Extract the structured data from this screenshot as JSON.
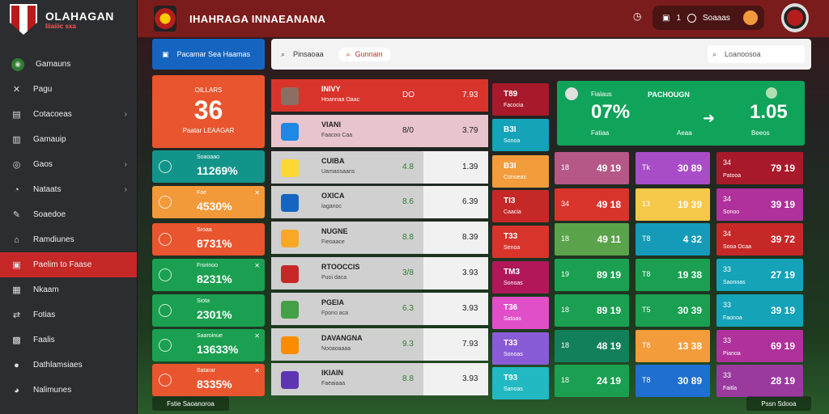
{
  "brand": {
    "title": "OLAHAGAN",
    "subtitle": "Iiiaiiic sxa"
  },
  "sidebar": {
    "items": [
      {
        "label": "Gamauns",
        "icon": "ball-icon",
        "glyph": "◉",
        "chevron": false,
        "active": false
      },
      {
        "label": "Pagu",
        "icon": "tools-icon",
        "glyph": "✕",
        "chevron": false,
        "active": false
      },
      {
        "label": "Cotacoeas",
        "icon": "card-icon",
        "glyph": "▤",
        "chevron": true,
        "active": false
      },
      {
        "label": "Gamauip",
        "icon": "list-icon",
        "glyph": "▥",
        "chevron": false,
        "active": false
      },
      {
        "label": "Gaos",
        "icon": "target-icon",
        "glyph": "◎",
        "chevron": true,
        "active": false
      },
      {
        "label": "Nataats",
        "icon": "settings-icon",
        "glyph": "◔",
        "chevron": true,
        "active": false
      },
      {
        "label": "Soaedoe",
        "icon": "user-edit-icon",
        "glyph": "✎",
        "chevron": false,
        "active": false
      },
      {
        "label": "Ramdiunes",
        "icon": "building-icon",
        "glyph": "⌂",
        "chevron": false,
        "active": false
      },
      {
        "label": "Paelim to Faase",
        "icon": "flag-icon",
        "glyph": "▣",
        "chevron": false,
        "active": true
      },
      {
        "label": "Nkaam",
        "icon": "grid-icon",
        "glyph": "▦",
        "chevron": false,
        "active": false
      },
      {
        "label": "Fotias",
        "icon": "share-icon",
        "glyph": "⇄",
        "chevron": false,
        "active": false
      },
      {
        "label": "Faalis",
        "icon": "calendar-icon",
        "glyph": "▩",
        "chevron": false,
        "active": false
      },
      {
        "label": "Dathlamsiaes",
        "icon": "person-icon",
        "glyph": "●",
        "chevron": false,
        "active": false
      },
      {
        "label": "Nalimunes",
        "icon": "star-icon",
        "glyph": "◕",
        "chevron": false,
        "active": false
      }
    ]
  },
  "topbar": {
    "title": "IHAHRAGA INNAEANANA",
    "pill_num": "1",
    "pill_label": "Soaaas",
    "clock": "◷"
  },
  "blue_button": {
    "label": "Pacamar Sea Haamas"
  },
  "search": {
    "label": "Pinsaoaa",
    "chip": "Gunnain",
    "right": "Loanoosoa"
  },
  "big_score": {
    "label": "OILLARS",
    "value": "36",
    "sub": "Paatar LEAAGAR"
  },
  "stats": [
    {
      "title": "Soaoaao",
      "value": "11269%",
      "color": "#13948a",
      "icon": "clock-icon",
      "x": ""
    },
    {
      "title": "Foe",
      "value": "4530%",
      "color": "#f2993a",
      "icon": "shield-icon",
      "x": "✕"
    },
    {
      "title": "Sroaa",
      "value": "8731%",
      "color": "#e8552e",
      "icon": "clock-icon",
      "x": ""
    },
    {
      "title": "Frorinoo",
      "value": "8231%",
      "color": "#1aa050",
      "icon": "clock-icon",
      "x": "✕"
    },
    {
      "title": "Siota",
      "value": "2301%",
      "color": "#1aa050",
      "icon": "clock-icon",
      "x": ""
    },
    {
      "title": "Saaroinue",
      "value": "13633%",
      "color": "#1aa050",
      "icon": "clock-icon",
      "x": "✕"
    },
    {
      "title": "Satarar",
      "value": "8335%",
      "color": "#e8552e",
      "icon": "clock-icon",
      "x": "✕"
    }
  ],
  "table": [
    {
      "name": "INIVY",
      "sub": "Hoannaa Oaac",
      "o1": "DO",
      "o2": "7.93",
      "bg": "#d9342b",
      "o1c": "#222",
      "flag": "#8d6e63"
    },
    {
      "name": "VIANI",
      "sub": "Faacoo Caa",
      "o1": "8/0",
      "o2": "3.79",
      "bg": "#e8c5cc",
      "o1c": "#222",
      "flag": "#1e88e5"
    },
    {
      "name": "CUIBA",
      "sub": "Uamaosaans",
      "o1": "4.8",
      "o2": "1.39",
      "bg": "#d0d0d0",
      "o1c": "#2e7d32",
      "flag": "#fdd835"
    },
    {
      "name": "OXICA",
      "sub": "Iaganoc",
      "o1": "8.6",
      "o2": "6.39",
      "bg": "#d0d0d0",
      "o1c": "#2e7d32",
      "flag": "#1565c0"
    },
    {
      "name": "NUGNE",
      "sub": "Fieoaace",
      "o1": "8.8",
      "o2": "8.39",
      "bg": "#d0d0d0",
      "o1c": "#2e7d32",
      "flag": "#f9a825"
    },
    {
      "name": "RTOOCCIS",
      "sub": "Puoi daca",
      "o1": "3/8",
      "o2": "3.93",
      "bg": "#d0d0d0",
      "o1c": "#2e7d32",
      "flag": "#c62828"
    },
    {
      "name": "PGEIA",
      "sub": "Fpono aca",
      "o1": "6.3",
      "o2": "3.93",
      "bg": "#d0d0d0",
      "o1c": "#2e7d32",
      "flag": "#43a047"
    },
    {
      "name": "DAVANGNA",
      "sub": "Nooaoaaaa",
      "o1": "9.3",
      "o2": "7.93",
      "bg": "#d0d0d0",
      "o1c": "#2e7d32",
      "flag": "#fb8c00"
    },
    {
      "name": "IKIAIN",
      "sub": "Faeaiaaa",
      "o1": "8.8",
      "o2": "3.93",
      "bg": "#d0d0d0",
      "o1c": "#2e7d32",
      "flag": "#5e35b1"
    }
  ],
  "tiles": [
    {
      "a": "T89",
      "b": "Facocia",
      "color": "#a8192b"
    },
    {
      "a": "B3I",
      "b": "Sonoa",
      "color": "#14a3b8"
    },
    {
      "a": "B3I",
      "b": "Conoeas",
      "color": "#f39c3c"
    },
    {
      "a": "TI3",
      "b": "Caacia",
      "color": "#c62828"
    },
    {
      "a": "T33",
      "b": "Senoa",
      "color": "#d9342b"
    },
    {
      "a": "TM3",
      "b": "Sonoas",
      "color": "#b0185a"
    },
    {
      "a": "T36",
      "b": "Satoas",
      "color": "#e04fc8"
    },
    {
      "a": "T33",
      "b": "Sonoas",
      "color": "#8a5bd6"
    },
    {
      "a": "T93",
      "b": "Sanoas",
      "color": "#23b9c2"
    }
  ],
  "feature": {
    "left_label": "Fialaus",
    "left_value": "07%",
    "left_caption": "Fatiaa",
    "middle": "PACHOUGN",
    "right_value": "1.05",
    "mid_caption": "Aeaa",
    "right_caption": "Beeos"
  },
  "grid": [
    [
      {
        "a": "18",
        "b": "49 19",
        "c": "",
        "color": "#b55887"
      },
      {
        "a": "Tk",
        "b": "30 89",
        "c": "",
        "color": "#a84cc8"
      },
      {
        "a": "34",
        "b": "79 19",
        "c": "Patooa",
        "color": "#a8192b"
      }
    ],
    [
      {
        "a": "34",
        "b": "49 18",
        "c": "",
        "color": "#d9342b"
      },
      {
        "a": "13",
        "b": "19 39",
        "c": "",
        "color": "#f5c84a"
      },
      {
        "a": "34",
        "b": "39 19",
        "c": "Sonoo",
        "color": "#b0309c"
      }
    ],
    [
      {
        "a": "18",
        "b": "49 11",
        "c": "",
        "color": "#5aa34a"
      },
      {
        "a": "T8",
        "b": "4 32",
        "c": "",
        "color": "#159bb8"
      },
      {
        "a": "34",
        "b": "39 72",
        "c": "Sooa Ocaa",
        "color": "#c62828"
      }
    ],
    [
      {
        "a": "19",
        "b": "89 19",
        "c": "",
        "color": "#1aa050"
      },
      {
        "a": "T8",
        "b": "19 38",
        "c": "",
        "color": "#1aa050"
      },
      {
        "a": "33",
        "b": "27 19",
        "c": "Saonoas",
        "color": "#14a3b8"
      }
    ],
    [
      {
        "a": "18",
        "b": "89 19",
        "c": "",
        "color": "#1aa050"
      },
      {
        "a": "T5",
        "b": "30 39",
        "c": "",
        "color": "#1aa050"
      },
      {
        "a": "33",
        "b": "39 19",
        "c": "Faonoa",
        "color": "#14a3b8"
      }
    ],
    [
      {
        "a": "18",
        "b": "48 19",
        "c": "",
        "color": "#12805a"
      },
      {
        "a": "T8",
        "b": "13 38",
        "c": "",
        "color": "#f39c3c"
      },
      {
        "a": "33",
        "b": "69 19",
        "c": "Pianoa",
        "color": "#b0309c"
      }
    ],
    [
      {
        "a": "18",
        "b": "24 19",
        "c": "",
        "color": "#1aa050"
      },
      {
        "a": "T8",
        "b": "30 89",
        "c": "",
        "color": "#1e6fd0"
      },
      {
        "a": "33",
        "b": "28 19",
        "c": "Faitla",
        "color": "#9a3a9e"
      }
    ]
  ],
  "footer": {
    "left": "Fstie Saoanoroa",
    "right": "Pssn Sdooa"
  }
}
